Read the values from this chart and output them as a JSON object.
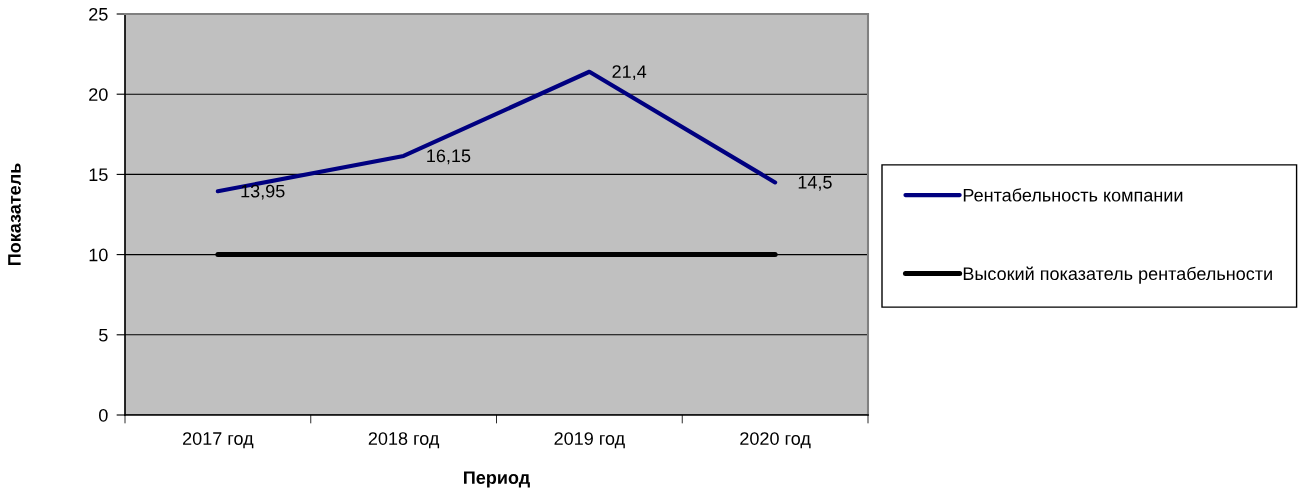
{
  "chart_data": {
    "type": "line",
    "xlabel": "Период",
    "ylabel": "Показатель",
    "categories": [
      "2017 год",
      "2018 год",
      "2019 год",
      "2020 год"
    ],
    "series": [
      {
        "name": "Рентабельность компании",
        "color": "#000080",
        "values": [
          13.95,
          16.15,
          21.4,
          14.5
        ],
        "value_labels": [
          "13,95",
          "16,15",
          "21,4",
          "14,5"
        ]
      },
      {
        "name": "Высокий показатель рентабельности",
        "color": "#000000",
        "values": [
          10,
          10,
          10,
          10
        ]
      }
    ],
    "ylim": [
      0,
      25
    ],
    "yticks": [
      0,
      5,
      10,
      15,
      20,
      25
    ],
    "grid": "y",
    "legend": "right"
  }
}
